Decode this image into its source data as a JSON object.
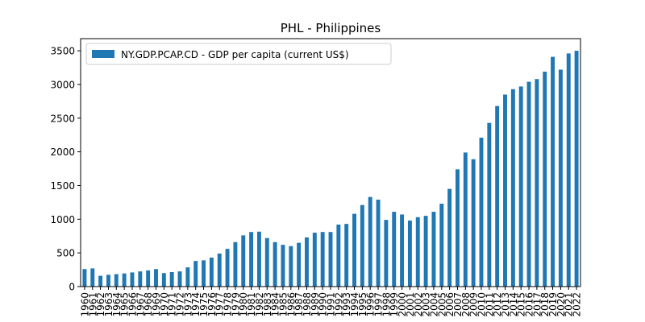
{
  "chart_data": {
    "type": "bar",
    "title": "PHL - Philippines",
    "xlabel": "",
    "ylabel": "",
    "ylim": [
      0,
      3680
    ],
    "yticks": [
      0,
      500,
      1000,
      1500,
      2000,
      2500,
      3000,
      3500
    ],
    "legend": {
      "position": "top-left"
    },
    "color": "#1f77b4",
    "categories": [
      "1960",
      "1961",
      "1962",
      "1963",
      "1964",
      "1965",
      "1966",
      "1967",
      "1968",
      "1969",
      "1970",
      "1971",
      "1972",
      "1973",
      "1974",
      "1975",
      "1976",
      "1977",
      "1978",
      "1979",
      "1980",
      "1981",
      "1982",
      "1983",
      "1984",
      "1985",
      "1986",
      "1987",
      "1988",
      "1989",
      "1990",
      "1991",
      "1992",
      "1993",
      "1994",
      "1995",
      "1996",
      "1997",
      "1998",
      "1999",
      "2000",
      "2001",
      "2002",
      "2003",
      "2004",
      "2005",
      "2006",
      "2007",
      "2008",
      "2009",
      "2010",
      "2011",
      "2012",
      "2013",
      "2014",
      "2015",
      "2016",
      "2017",
      "2018",
      "2019",
      "2020",
      "2021",
      "2022"
    ],
    "series": [
      {
        "name": "NY.GDP.PCAP.CD - GDP per capita (current US$)",
        "values": [
          260,
          270,
          160,
          175,
          185,
          195,
          210,
          225,
          240,
          260,
          200,
          215,
          225,
          285,
          380,
          390,
          430,
          490,
          560,
          660,
          760,
          810,
          815,
          720,
          660,
          620,
          600,
          650,
          730,
          800,
          810,
          810,
          920,
          930,
          1080,
          1210,
          1330,
          1290,
          990,
          1110,
          1070,
          980,
          1030,
          1050,
          1110,
          1230,
          1450,
          1740,
          1990,
          1890,
          2210,
          2430,
          2680,
          2850,
          2930,
          2970,
          3040,
          3080,
          3190,
          3410,
          3220,
          3460,
          3500
        ]
      }
    ]
  }
}
